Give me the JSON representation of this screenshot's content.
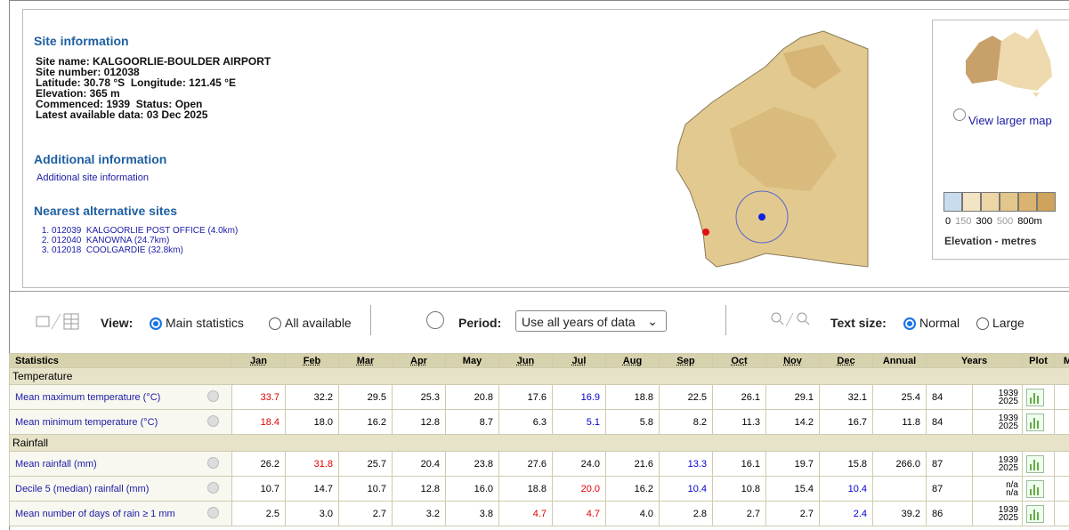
{
  "site_info": {
    "heading": "Site information",
    "lines": [
      "Site name: KALGOORLIE-BOULDER AIRPORT",
      "Site number: 012038",
      "Latitude: 30.78 °S  Longitude: 121.45 °E",
      "Elevation: 365 m",
      "Commenced: 1939  Status: Open",
      "Latest available data: 03 Dec 2025"
    ]
  },
  "additional": {
    "heading": "Additional information",
    "link": "Additional site information"
  },
  "nearest": {
    "heading": "Nearest alternative sites",
    "sites": [
      "012039  KALGOORLIE POST OFFICE (4.0km)",
      "012040  KANOWNA (24.7km)",
      "012018  COOLGARDIE (32.8km)"
    ]
  },
  "map_panel": {
    "link": "View larger map",
    "legend_ticks": [
      "0",
      "150",
      "300",
      "500",
      "800m"
    ],
    "legend_title": "Elevation - metres"
  },
  "toolbar": {
    "view_label": "View:",
    "view_options": [
      "Main statistics",
      "All available"
    ],
    "period_label": "Period:",
    "period_value": "Use all years of data",
    "text_size_label": "Text size:",
    "text_size_options": [
      "Normal",
      "Large"
    ]
  },
  "table": {
    "headers": [
      "Statistics",
      "Jan",
      "Feb",
      "Mar",
      "Apr",
      "May",
      "Jun",
      "Jul",
      "Aug",
      "Sep",
      "Oct",
      "Nov",
      "Dec",
      "Annual",
      "Years",
      "Plot",
      "Ma"
    ],
    "groups": [
      {
        "name": "Temperature",
        "rows": [
          {
            "label": "Mean maximum temperature (°C)",
            "values": [
              "33.7",
              "32.2",
              "29.5",
              "25.3",
              "20.8",
              "17.6",
              "16.9",
              "18.8",
              "22.5",
              "26.1",
              "29.1",
              "32.1"
            ],
            "annual": "25.4",
            "count": "84",
            "years": [
              "1939",
              "2025"
            ],
            "red": [
              0
            ],
            "blue": [
              6
            ]
          },
          {
            "label": "Mean minimum temperature (°C)",
            "values": [
              "18.4",
              "18.0",
              "16.2",
              "12.8",
              "8.7",
              "6.3",
              "5.1",
              "5.8",
              "8.2",
              "11.3",
              "14.2",
              "16.7"
            ],
            "annual": "11.8",
            "count": "84",
            "years": [
              "1939",
              "2025"
            ],
            "red": [
              0
            ],
            "blue": [
              6
            ]
          }
        ]
      },
      {
        "name": "Rainfall",
        "rows": [
          {
            "label": "Mean rainfall (mm)",
            "values": [
              "26.2",
              "31.8",
              "25.7",
              "20.4",
              "23.8",
              "27.6",
              "24.0",
              "21.6",
              "13.3",
              "16.1",
              "19.7",
              "15.8"
            ],
            "annual": "266.0",
            "count": "87",
            "years": [
              "1939",
              "2025"
            ],
            "red": [
              1
            ],
            "blue": [
              8
            ]
          },
          {
            "label": "Decile 5 (median) rainfall (mm)",
            "values": [
              "10.7",
              "14.7",
              "10.7",
              "12.8",
              "16.0",
              "18.8",
              "20.0",
              "16.2",
              "10.4",
              "10.8",
              "15.4",
              "10.4"
            ],
            "annual": null,
            "count": "87",
            "years": [
              "n/a",
              "n/a"
            ],
            "red": [
              6
            ],
            "blue": [
              8,
              11
            ]
          },
          {
            "label": "Mean number of days of rain ≥ 1 mm",
            "values": [
              "2.5",
              "3.0",
              "2.7",
              "3.2",
              "3.8",
              "4.7",
              "4.7",
              "4.0",
              "2.8",
              "2.7",
              "2.7",
              "2.4"
            ],
            "annual": "39.2",
            "count": "86",
            "years": [
              "1939",
              "2025"
            ],
            "red": [
              5,
              6
            ],
            "blue": [
              11
            ]
          }
        ]
      }
    ]
  }
}
